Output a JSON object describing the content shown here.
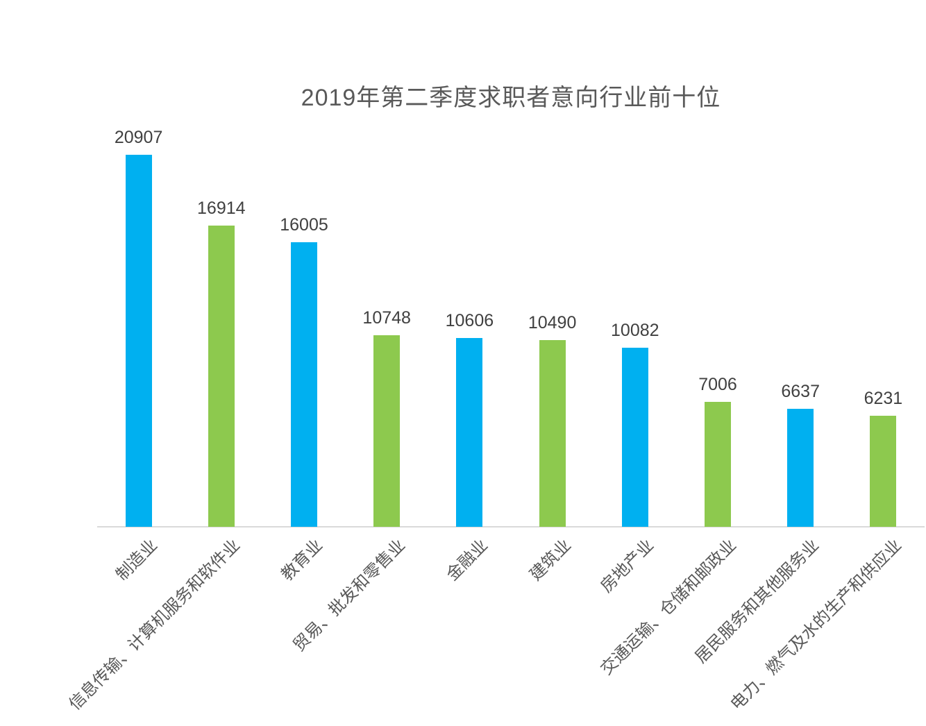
{
  "chart_data": {
    "type": "bar",
    "title": "2019年第二季度求职者意向行业前十位",
    "categories": [
      "制造业",
      "信息传输、计算机服务和软件业",
      "教育业",
      "贸易、批发和零售业",
      "金融业",
      "建筑业",
      "房地产业",
      "交通运输、仓储和邮政业",
      "居民服务和其他服务业",
      "电力、燃气及水的生产和供应业"
    ],
    "values": [
      20907,
      16914,
      16005,
      10748,
      10606,
      10490,
      10082,
      7006,
      6637,
      6231
    ],
    "xlabel": "",
    "ylabel": "",
    "ylim": [
      0,
      22000
    ],
    "grid": false,
    "legend": "none",
    "data_labels_visible": true,
    "category_label_rotation_deg": 45,
    "colors": {
      "bar_odd": "#00B0F0",
      "bar_even": "#8DC94E",
      "title_text": "#595959",
      "value_label_text": "#404040",
      "category_label_text": "#595959",
      "axis_line": "#D9D9D9",
      "background": "#FFFFFF"
    }
  }
}
